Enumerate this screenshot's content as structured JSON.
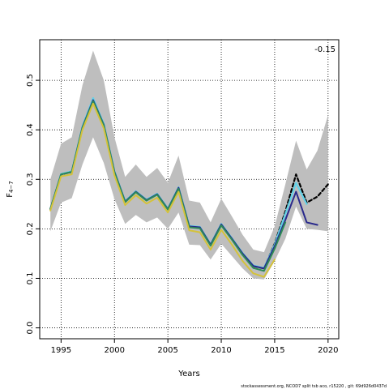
{
  "chart_data": {
    "type": "line",
    "xlabel": "Years",
    "ylabel_main": "F",
    "ylabel_sub": "4−7",
    "xlim": [
      1993,
      2021
    ],
    "ylim": [
      -0.022,
      0.582
    ],
    "x_ticks": [
      1995,
      2000,
      2005,
      2010,
      2015,
      2020
    ],
    "y_ticks": [
      0.0,
      0.1,
      0.2,
      0.3,
      0.4,
      0.5
    ],
    "x_tick_labels": [
      "1995",
      "2000",
      "2005",
      "2010",
      "2015",
      "2020"
    ],
    "y_tick_labels": [
      "0.0",
      "0.1",
      "0.2",
      "0.3",
      "0.4",
      "0.5"
    ],
    "grid": true,
    "annotation": "-0.15",
    "footer": "stockassessment.org, NCOD7 split tsb aco, r15220 , git: 69d926d0437d",
    "band": {
      "color": "#bebebe",
      "x": [
        1994,
        1995,
        1996,
        1997,
        1998,
        1999,
        2000,
        2001,
        2002,
        2003,
        2004,
        2005,
        2006,
        2007,
        2008,
        2009,
        2010,
        2011,
        2012,
        2013,
        2014,
        2015,
        2016,
        2017,
        2018,
        2019,
        2020
      ],
      "upper": [
        0.3,
        0.372,
        0.385,
        0.49,
        0.56,
        0.5,
        0.385,
        0.305,
        0.33,
        0.305,
        0.323,
        0.293,
        0.348,
        0.257,
        0.253,
        0.213,
        0.261,
        0.225,
        0.188,
        0.158,
        0.153,
        0.205,
        0.29,
        0.378,
        0.32,
        0.358,
        0.43
      ],
      "lower": [
        0.195,
        0.253,
        0.262,
        0.33,
        0.385,
        0.333,
        0.26,
        0.21,
        0.228,
        0.213,
        0.223,
        0.2,
        0.233,
        0.168,
        0.167,
        0.138,
        0.17,
        0.145,
        0.12,
        0.1,
        0.098,
        0.135,
        0.18,
        0.245,
        0.2,
        0.198,
        0.195
      ]
    },
    "series": [
      {
        "color": "#000000",
        "dash": "4,3",
        "width": 2.2,
        "x": [
          1994,
          1995,
          1996,
          1997,
          1998,
          1999,
          2000,
          2001,
          2002,
          2003,
          2004,
          2005,
          2006,
          2007,
          2008,
          2009,
          2010,
          2011,
          2012,
          2013,
          2014,
          2015,
          2016,
          2017,
          2018,
          2019,
          2020
        ],
        "values": [
          0.24,
          0.31,
          0.315,
          0.405,
          0.46,
          0.41,
          0.315,
          0.255,
          0.275,
          0.258,
          0.27,
          0.24,
          0.283,
          0.205,
          0.203,
          0.168,
          0.209,
          0.18,
          0.15,
          0.125,
          0.12,
          0.17,
          0.235,
          0.31,
          0.253,
          0.265,
          0.29
        ]
      },
      {
        "color": "#61d2e8",
        "dash": "",
        "width": 2.2,
        "x": [
          1994,
          1995,
          1996,
          1997,
          1998,
          1999,
          2000,
          2001,
          2002,
          2003,
          2004,
          2005,
          2006,
          2007,
          2008,
          2009,
          2010,
          2011,
          2012,
          2013,
          2014,
          2015,
          2016,
          2017,
          2018
        ],
        "values": [
          0.24,
          0.311,
          0.316,
          0.407,
          0.464,
          0.412,
          0.316,
          0.256,
          0.276,
          0.259,
          0.271,
          0.241,
          0.284,
          0.206,
          0.204,
          0.169,
          0.21,
          0.181,
          0.151,
          0.126,
          0.121,
          0.168,
          0.23,
          0.293,
          0.25
        ]
      },
      {
        "color": "#2a2a8c",
        "dash": "",
        "width": 2.0,
        "x": [
          1994,
          1995,
          1996,
          1997,
          1998,
          1999,
          2000,
          2001,
          2002,
          2003,
          2004,
          2005,
          2006,
          2007,
          2008,
          2009,
          2010,
          2011,
          2012,
          2013,
          2014,
          2015,
          2016,
          2017,
          2018,
          2019
        ],
        "values": [
          0.24,
          0.31,
          0.315,
          0.405,
          0.46,
          0.41,
          0.315,
          0.255,
          0.275,
          0.258,
          0.27,
          0.24,
          0.283,
          0.205,
          0.203,
          0.168,
          0.209,
          0.18,
          0.15,
          0.125,
          0.12,
          0.165,
          0.218,
          0.275,
          0.213,
          0.208
        ]
      },
      {
        "color": "#2e8b57",
        "dash": "",
        "width": 2.0,
        "x": [
          1994,
          1995,
          1996,
          1997,
          1998,
          1999,
          2000,
          2001,
          2002,
          2003,
          2004,
          2005,
          2006,
          2007,
          2008,
          2009,
          2010,
          2011,
          2012,
          2013,
          2014,
          2015,
          2016
        ],
        "values": [
          0.24,
          0.31,
          0.315,
          0.404,
          0.458,
          0.409,
          0.314,
          0.254,
          0.274,
          0.257,
          0.269,
          0.239,
          0.281,
          0.203,
          0.201,
          0.166,
          0.207,
          0.178,
          0.147,
          0.121,
          0.115,
          0.16,
          0.213
        ]
      },
      {
        "color": "#d4c23a",
        "dash": "",
        "width": 2.0,
        "x": [
          1994,
          1995,
          1996,
          1997,
          1998,
          1999,
          2000,
          2001,
          2002,
          2003,
          2004,
          2005,
          2006,
          2007,
          2008,
          2009,
          2010,
          2011,
          2012,
          2013,
          2014,
          2015
        ],
        "values": [
          0.237,
          0.306,
          0.31,
          0.4,
          0.453,
          0.403,
          0.308,
          0.248,
          0.268,
          0.251,
          0.263,
          0.233,
          0.275,
          0.197,
          0.193,
          0.158,
          0.198,
          0.168,
          0.135,
          0.11,
          0.103,
          0.138
        ]
      }
    ]
  }
}
